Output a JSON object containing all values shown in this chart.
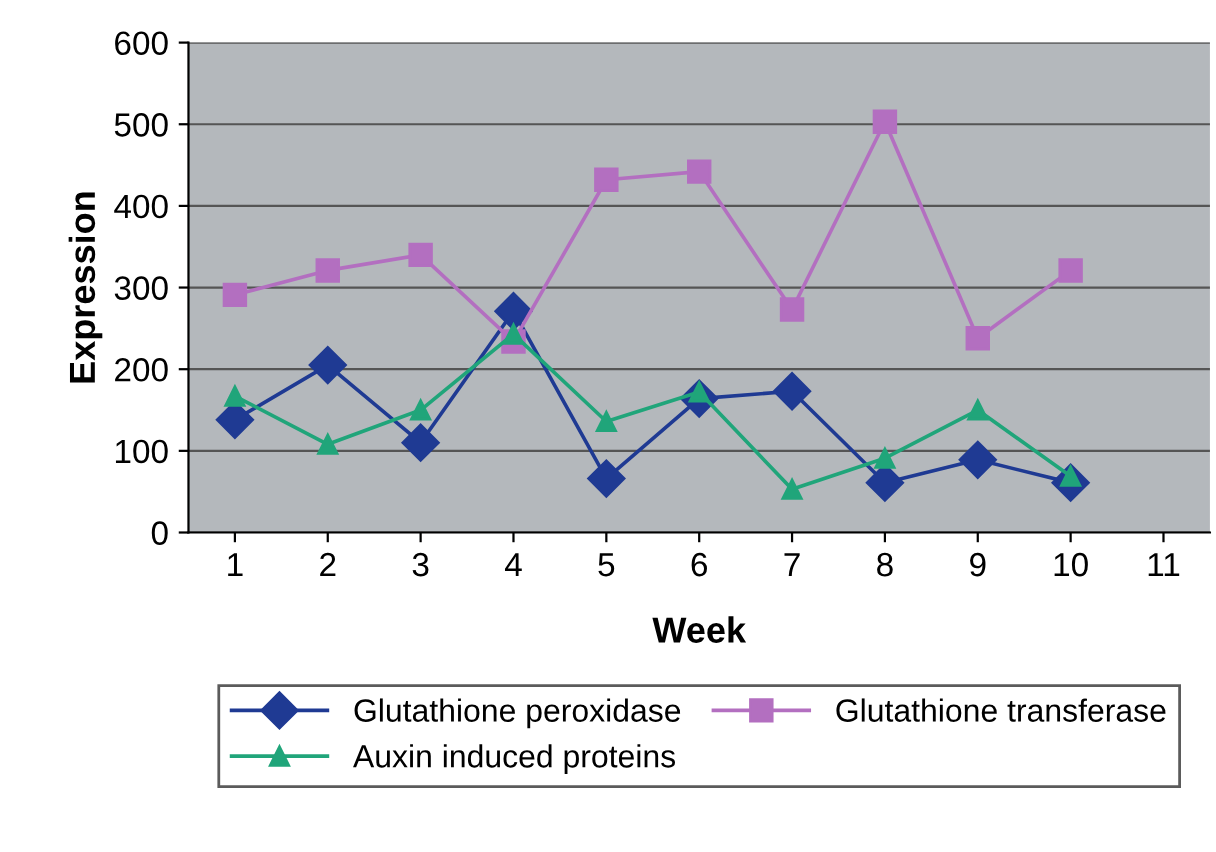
{
  "chart_data": {
    "type": "line",
    "xlabel": "Week",
    "ylabel": "Expression",
    "categories": [
      "1",
      "2",
      "3",
      "4",
      "5",
      "6",
      "7",
      "8",
      "9",
      "10",
      "11"
    ],
    "series": [
      {
        "name": "Glutathione peroxidase",
        "color": "#1f3a93",
        "marker": "diamond",
        "values": [
          138,
          205,
          110,
          271,
          66,
          164,
          173,
          61,
          89,
          61,
          null
        ]
      },
      {
        "name": "Glutathione transferase",
        "color": "#b36fc0",
        "marker": "square",
        "values": [
          291,
          321,
          340,
          234,
          432,
          442,
          273,
          503,
          238,
          321,
          null
        ]
      },
      {
        "name": "Auxin induced proteins",
        "color": "#20a57a",
        "marker": "triangle",
        "values": [
          167,
          108,
          150,
          243,
          136,
          172,
          53,
          91,
          150,
          69,
          null
        ]
      }
    ],
    "ylim": [
      0,
      600
    ],
    "yticks": [
      0,
      100,
      200,
      300,
      400,
      500,
      600
    ],
    "grid": "y",
    "legend": "bottom"
  }
}
